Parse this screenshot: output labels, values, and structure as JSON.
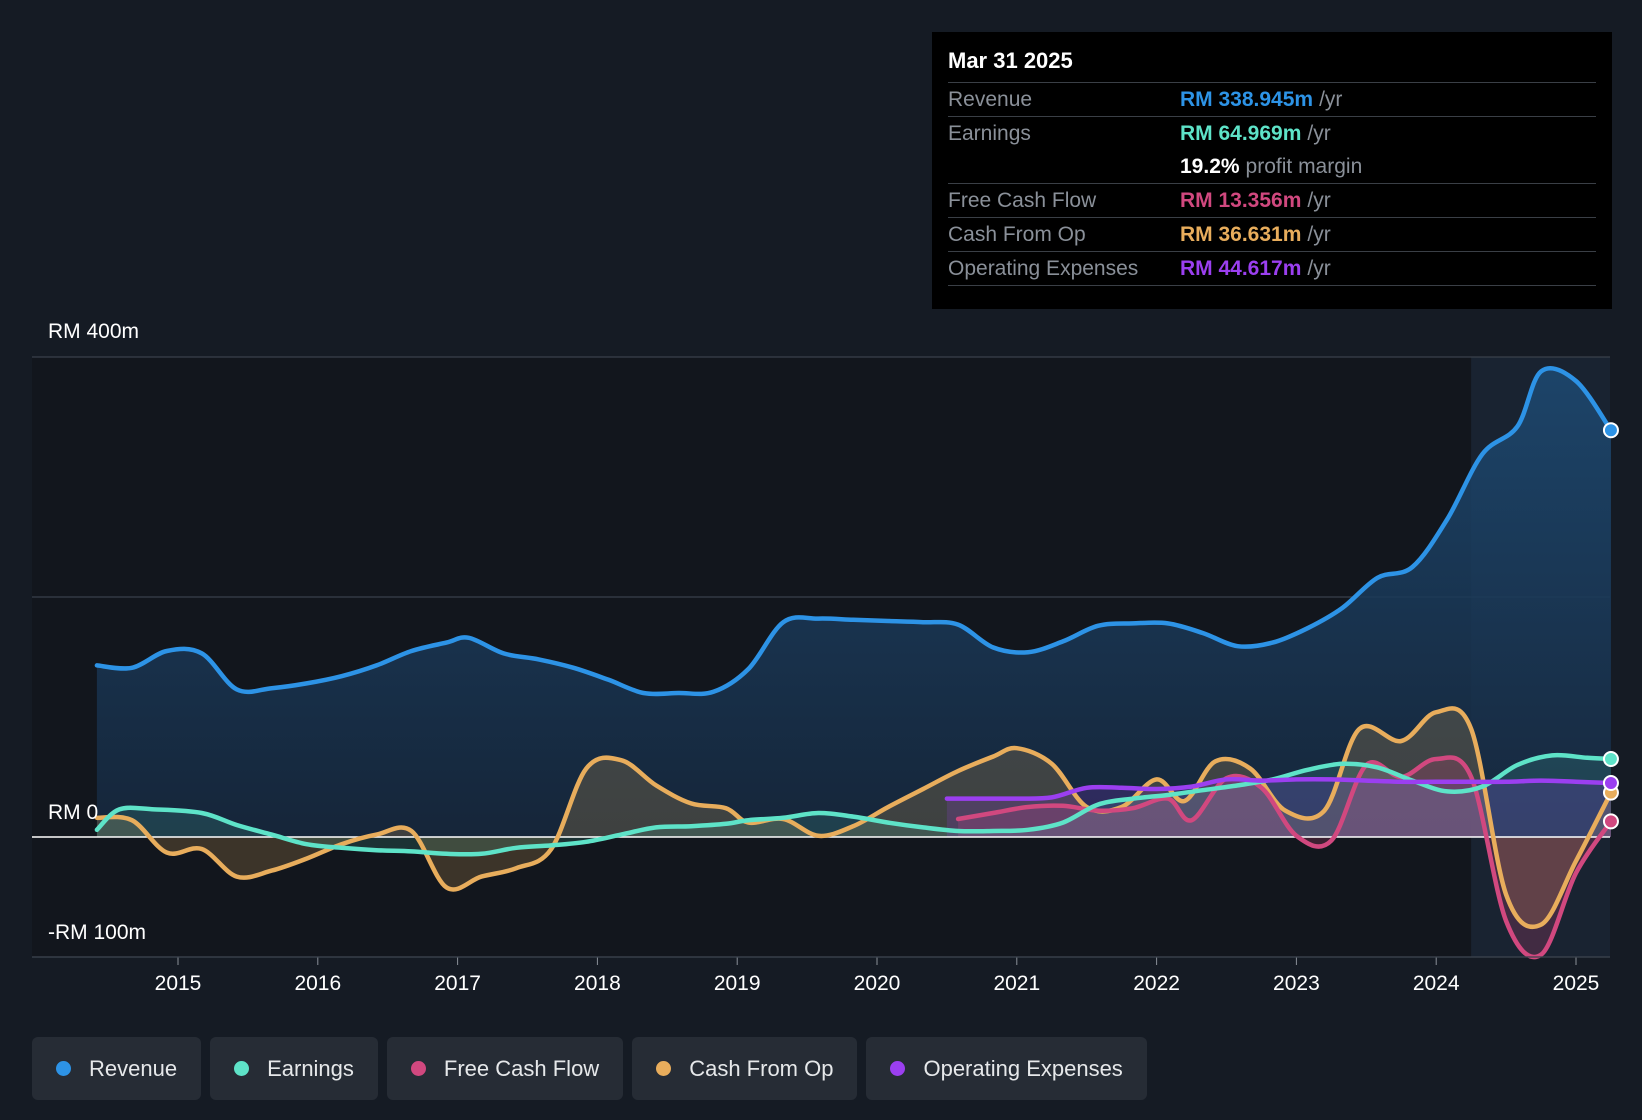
{
  "tooltip": {
    "date": "Mar 31 2025",
    "rows": [
      {
        "label": "Revenue",
        "value": "RM 338.945m",
        "unit": "/yr",
        "color": "#2d93e6"
      },
      {
        "label": "Earnings",
        "value": "RM 64.969m",
        "unit": "/yr",
        "color": "#5ee3c8"
      },
      {
        "label": "",
        "value": "19.2%",
        "unit": "profit margin",
        "color": "#ffffff"
      },
      {
        "label": "Free Cash Flow",
        "value": "RM 13.356m",
        "unit": "/yr",
        "color": "#d1487f"
      },
      {
        "label": "Cash From Op",
        "value": "RM 36.631m",
        "unit": "/yr",
        "color": "#e8ad5c"
      },
      {
        "label": "Operating Expenses",
        "value": "RM 44.617m",
        "unit": "/yr",
        "color": "#9b3ff0"
      }
    ]
  },
  "legend": [
    {
      "label": "Revenue",
      "color": "#2d93e6"
    },
    {
      "label": "Earnings",
      "color": "#5ee3c8"
    },
    {
      "label": "Free Cash Flow",
      "color": "#d1487f"
    },
    {
      "label": "Cash From Op",
      "color": "#e8ad5c"
    },
    {
      "label": "Operating Expenses",
      "color": "#9b3ff0"
    }
  ],
  "chart_data": {
    "type": "area",
    "xlabel": "",
    "ylabel": "",
    "ylim": [
      -100,
      400
    ],
    "xlim": [
      2014.25,
      2025.5
    ],
    "y_ticks": [
      {
        "value": 400,
        "label": "RM 400m"
      },
      {
        "value": 0,
        "label": "RM 0"
      },
      {
        "value": -100,
        "label": "-RM 100m"
      }
    ],
    "x_ticks": [
      "2015",
      "2016",
      "2017",
      "2018",
      "2019",
      "2020",
      "2021",
      "2022",
      "2023",
      "2024",
      "2025"
    ],
    "x_tick_values": [
      2015,
      2016,
      2017,
      2018,
      2019,
      2020,
      2021,
      2022,
      2023,
      2024,
      2025
    ],
    "highlight_from": 2024.25,
    "series": [
      {
        "name": "Revenue",
        "color": "#2d93e6",
        "points": [
          [
            2014.42,
            143
          ],
          [
            2014.67,
            141
          ],
          [
            2014.92,
            155
          ],
          [
            2015.17,
            153
          ],
          [
            2015.42,
            123
          ],
          [
            2015.67,
            124
          ],
          [
            2015.92,
            128
          ],
          [
            2016.17,
            134
          ],
          [
            2016.42,
            143
          ],
          [
            2016.67,
            155
          ],
          [
            2016.92,
            162
          ],
          [
            2017.08,
            166
          ],
          [
            2017.33,
            153
          ],
          [
            2017.58,
            148
          ],
          [
            2017.83,
            141
          ],
          [
            2018.08,
            131
          ],
          [
            2018.33,
            120
          ],
          [
            2018.58,
            120
          ],
          [
            2018.83,
            121
          ],
          [
            2019.08,
            140
          ],
          [
            2019.33,
            179
          ],
          [
            2019.58,
            182
          ],
          [
            2019.83,
            181
          ],
          [
            2020.08,
            180
          ],
          [
            2020.33,
            179
          ],
          [
            2020.58,
            177
          ],
          [
            2020.83,
            158
          ],
          [
            2021.08,
            154
          ],
          [
            2021.33,
            163
          ],
          [
            2021.58,
            176
          ],
          [
            2021.83,
            178
          ],
          [
            2022.08,
            178
          ],
          [
            2022.33,
            170
          ],
          [
            2022.58,
            159
          ],
          [
            2022.83,
            162
          ],
          [
            2023.08,
            174
          ],
          [
            2023.33,
            191
          ],
          [
            2023.58,
            216
          ],
          [
            2023.83,
            225
          ],
          [
            2024.08,
            265
          ],
          [
            2024.33,
            319
          ],
          [
            2024.58,
            342
          ],
          [
            2024.75,
            388
          ],
          [
            2025,
            380
          ],
          [
            2025.25,
            339
          ]
        ]
      },
      {
        "name": "Earnings",
        "color": "#5ee3c8",
        "points": [
          [
            2014.42,
            6
          ],
          [
            2014.58,
            23
          ],
          [
            2014.83,
            23
          ],
          [
            2015.17,
            20
          ],
          [
            2015.42,
            10
          ],
          [
            2015.67,
            2
          ],
          [
            2015.92,
            -6
          ],
          [
            2016.17,
            -9
          ],
          [
            2016.42,
            -11
          ],
          [
            2016.67,
            -12
          ],
          [
            2016.92,
            -14
          ],
          [
            2017.17,
            -14
          ],
          [
            2017.42,
            -9
          ],
          [
            2017.67,
            -7
          ],
          [
            2017.92,
            -4
          ],
          [
            2018.17,
            2
          ],
          [
            2018.42,
            8
          ],
          [
            2018.67,
            9
          ],
          [
            2018.92,
            11
          ],
          [
            2019.08,
            14
          ],
          [
            2019.33,
            16
          ],
          [
            2019.58,
            20
          ],
          [
            2019.83,
            17
          ],
          [
            2020.08,
            12
          ],
          [
            2020.33,
            8
          ],
          [
            2020.58,
            5
          ],
          [
            2020.83,
            5
          ],
          [
            2021.08,
            6
          ],
          [
            2021.33,
            12
          ],
          [
            2021.58,
            27
          ],
          [
            2021.83,
            32
          ],
          [
            2022.08,
            35
          ],
          [
            2022.33,
            39
          ],
          [
            2022.58,
            43
          ],
          [
            2022.83,
            48
          ],
          [
            2023.08,
            56
          ],
          [
            2023.33,
            61
          ],
          [
            2023.58,
            58
          ],
          [
            2023.83,
            47
          ],
          [
            2024.08,
            38
          ],
          [
            2024.33,
            42
          ],
          [
            2024.58,
            60
          ],
          [
            2024.83,
            68
          ],
          [
            2025.08,
            66
          ],
          [
            2025.25,
            65
          ]
        ]
      },
      {
        "name": "Free Cash Flow",
        "color": "#d1487f",
        "points": [
          [
            2020.58,
            15
          ],
          [
            2020.83,
            20
          ],
          [
            2021.08,
            25
          ],
          [
            2021.33,
            26
          ],
          [
            2021.58,
            22
          ],
          [
            2021.83,
            24
          ],
          [
            2022.08,
            32
          ],
          [
            2022.25,
            14
          ],
          [
            2022.5,
            49
          ],
          [
            2022.75,
            41
          ],
          [
            2023.0,
            1
          ],
          [
            2023.25,
            -3
          ],
          [
            2023.5,
            60
          ],
          [
            2023.75,
            50
          ],
          [
            2024.0,
            65
          ],
          [
            2024.25,
            50
          ],
          [
            2024.5,
            -70
          ],
          [
            2024.75,
            -98
          ],
          [
            2025.0,
            -30
          ],
          [
            2025.25,
            13
          ]
        ]
      },
      {
        "name": "Cash From Op",
        "color": "#e8ad5c",
        "points": [
          [
            2014.42,
            16
          ],
          [
            2014.67,
            14
          ],
          [
            2014.92,
            -13
          ],
          [
            2015.17,
            -10
          ],
          [
            2015.42,
            -33
          ],
          [
            2015.67,
            -28
          ],
          [
            2015.92,
            -18
          ],
          [
            2016.17,
            -6
          ],
          [
            2016.42,
            2
          ],
          [
            2016.67,
            5
          ],
          [
            2016.92,
            -42
          ],
          [
            2017.17,
            -33
          ],
          [
            2017.42,
            -26
          ],
          [
            2017.67,
            -10
          ],
          [
            2017.92,
            57
          ],
          [
            2018.17,
            64
          ],
          [
            2018.42,
            43
          ],
          [
            2018.67,
            28
          ],
          [
            2018.92,
            24
          ],
          [
            2019.08,
            12
          ],
          [
            2019.33,
            15
          ],
          [
            2019.58,
            1
          ],
          [
            2019.83,
            9
          ],
          [
            2020.08,
            25
          ],
          [
            2020.33,
            40
          ],
          [
            2020.58,
            55
          ],
          [
            2020.83,
            67
          ],
          [
            2021.0,
            74
          ],
          [
            2021.25,
            61
          ],
          [
            2021.5,
            25
          ],
          [
            2021.75,
            25
          ],
          [
            2022.0,
            48
          ],
          [
            2022.2,
            30
          ],
          [
            2022.42,
            63
          ],
          [
            2022.67,
            57
          ],
          [
            2022.92,
            22
          ],
          [
            2023.2,
            22
          ],
          [
            2023.45,
            90
          ],
          [
            2023.75,
            80
          ],
          [
            2024.0,
            104
          ],
          [
            2024.25,
            90
          ],
          [
            2024.5,
            -48
          ],
          [
            2024.75,
            -73
          ],
          [
            2025.0,
            -20
          ],
          [
            2025.25,
            37
          ]
        ]
      },
      {
        "name": "Operating Expenses",
        "color": "#9b3ff0",
        "points": [
          [
            2020.5,
            32
          ],
          [
            2020.75,
            32
          ],
          [
            2021.0,
            32
          ],
          [
            2021.25,
            33
          ],
          [
            2021.5,
            41
          ],
          [
            2021.75,
            41
          ],
          [
            2022.0,
            40
          ],
          [
            2022.25,
            42
          ],
          [
            2022.5,
            48
          ],
          [
            2022.75,
            47
          ],
          [
            2023.0,
            48
          ],
          [
            2023.25,
            48
          ],
          [
            2023.5,
            47
          ],
          [
            2023.75,
            46
          ],
          [
            2024.0,
            46
          ],
          [
            2024.25,
            46
          ],
          [
            2024.5,
            46
          ],
          [
            2024.75,
            47
          ],
          [
            2025.0,
            46
          ],
          [
            2025.25,
            45
          ]
        ]
      }
    ]
  }
}
